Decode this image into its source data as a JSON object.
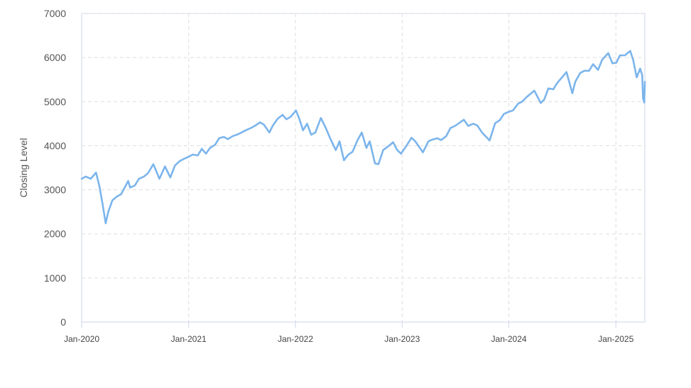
{
  "chart_data": {
    "type": "line",
    "title": "",
    "xlabel": "",
    "ylabel": "Closing Level",
    "ylim": [
      0,
      7000
    ],
    "xlim": [
      "2020-01-01",
      "2025-04-10"
    ],
    "grid": true,
    "legend": "none",
    "y_ticks": [
      0,
      1000,
      2000,
      3000,
      4000,
      5000,
      6000,
      7000
    ],
    "x_ticks": [
      {
        "date": "2020-01-01",
        "label": "Jan-2020"
      },
      {
        "date": "2021-01-01",
        "label": "Jan-2021"
      },
      {
        "date": "2022-01-01",
        "label": "Jan-2022"
      },
      {
        "date": "2023-01-01",
        "label": "Jan-2023"
      },
      {
        "date": "2024-01-01",
        "label": "Jan-2024"
      },
      {
        "date": "2025-01-01",
        "label": "Jan-2025"
      }
    ],
    "colors": {
      "line": "#7cb5ec",
      "grid": "#dddddd",
      "axis": "#ccd6eb",
      "frame": "#ccd6eb"
    },
    "series": [
      {
        "x": [
          "2020-01-01",
          "2020-01-15",
          "2020-02-01",
          "2020-02-19",
          "2020-03-01",
          "2020-03-12",
          "2020-03-23",
          "2020-04-01",
          "2020-04-15",
          "2020-05-01",
          "2020-05-15",
          "2020-06-08",
          "2020-06-15",
          "2020-07-01",
          "2020-07-15",
          "2020-08-01",
          "2020-08-15",
          "2020-09-02",
          "2020-09-23",
          "2020-10-12",
          "2020-10-30",
          "2020-11-15",
          "2020-12-01",
          "2020-12-15",
          "2021-01-01",
          "2021-01-15",
          "2021-02-01",
          "2021-02-15",
          "2021-03-01",
          "2021-03-15",
          "2021-04-01",
          "2021-04-15",
          "2021-05-01",
          "2021-05-15",
          "2021-06-01",
          "2021-06-15",
          "2021-07-01",
          "2021-07-15",
          "2021-08-01",
          "2021-08-15",
          "2021-09-02",
          "2021-09-15",
          "2021-10-04",
          "2021-10-15",
          "2021-11-01",
          "2021-11-18",
          "2021-12-01",
          "2021-12-15",
          "2022-01-03",
          "2022-01-15",
          "2022-01-27",
          "2022-02-10",
          "2022-02-24",
          "2022-03-10",
          "2022-03-29",
          "2022-04-15",
          "2022-05-01",
          "2022-05-19",
          "2022-06-01",
          "2022-06-16",
          "2022-07-01",
          "2022-07-15",
          "2022-08-01",
          "2022-08-16",
          "2022-09-01",
          "2022-09-12",
          "2022-09-30",
          "2022-10-12",
          "2022-10-28",
          "2022-11-15",
          "2022-12-01",
          "2022-12-15",
          "2022-12-28",
          "2023-01-15",
          "2023-02-02",
          "2023-02-15",
          "2023-03-13",
          "2023-04-01",
          "2023-04-15",
          "2023-05-01",
          "2023-05-15",
          "2023-06-01",
          "2023-06-15",
          "2023-07-01",
          "2023-07-31",
          "2023-08-15",
          "2023-09-01",
          "2023-09-15",
          "2023-10-01",
          "2023-10-27",
          "2023-11-15",
          "2023-12-01",
          "2023-12-15",
          "2024-01-01",
          "2024-01-15",
          "2024-02-01",
          "2024-02-15",
          "2024-03-01",
          "2024-03-28",
          "2024-04-19",
          "2024-05-01",
          "2024-05-15",
          "2024-06-01",
          "2024-06-15",
          "2024-07-16",
          "2024-08-05",
          "2024-08-15",
          "2024-09-01",
          "2024-09-15",
          "2024-10-01",
          "2024-10-15",
          "2024-11-01",
          "2024-11-15",
          "2024-12-06",
          "2024-12-20",
          "2025-01-02",
          "2025-01-15",
          "2025-02-01",
          "2025-02-19",
          "2025-03-01",
          "2025-03-13",
          "2025-03-25",
          "2025-04-01",
          "2025-04-04",
          "2025-04-08",
          "2025-04-10"
        ],
        "values": [
          3250,
          3300,
          3250,
          3390,
          3100,
          2700,
          2240,
          2500,
          2760,
          2850,
          2900,
          3200,
          3050,
          3100,
          3250,
          3300,
          3380,
          3580,
          3250,
          3530,
          3280,
          3550,
          3650,
          3700,
          3750,
          3800,
          3780,
          3930,
          3820,
          3950,
          4020,
          4170,
          4200,
          4150,
          4220,
          4250,
          4300,
          4350,
          4400,
          4450,
          4530,
          4480,
          4300,
          4450,
          4610,
          4700,
          4600,
          4650,
          4800,
          4600,
          4350,
          4500,
          4250,
          4300,
          4630,
          4400,
          4150,
          3900,
          4100,
          3670,
          3800,
          3860,
          4120,
          4300,
          3950,
          4100,
          3600,
          3580,
          3900,
          3990,
          4080,
          3900,
          3820,
          3990,
          4180,
          4100,
          3850,
          4100,
          4140,
          4170,
          4130,
          4220,
          4400,
          4450,
          4590,
          4450,
          4500,
          4460,
          4300,
          4120,
          4510,
          4580,
          4720,
          4770,
          4800,
          4950,
          5000,
          5100,
          5250,
          4970,
          5050,
          5300,
          5280,
          5430,
          5670,
          5190,
          5450,
          5650,
          5700,
          5700,
          5850,
          5720,
          5950,
          6100,
          5870,
          5880,
          6050,
          6050,
          6150,
          5950,
          5550,
          5750,
          5600,
          5070,
          4980,
          5450
        ]
      }
    ]
  }
}
